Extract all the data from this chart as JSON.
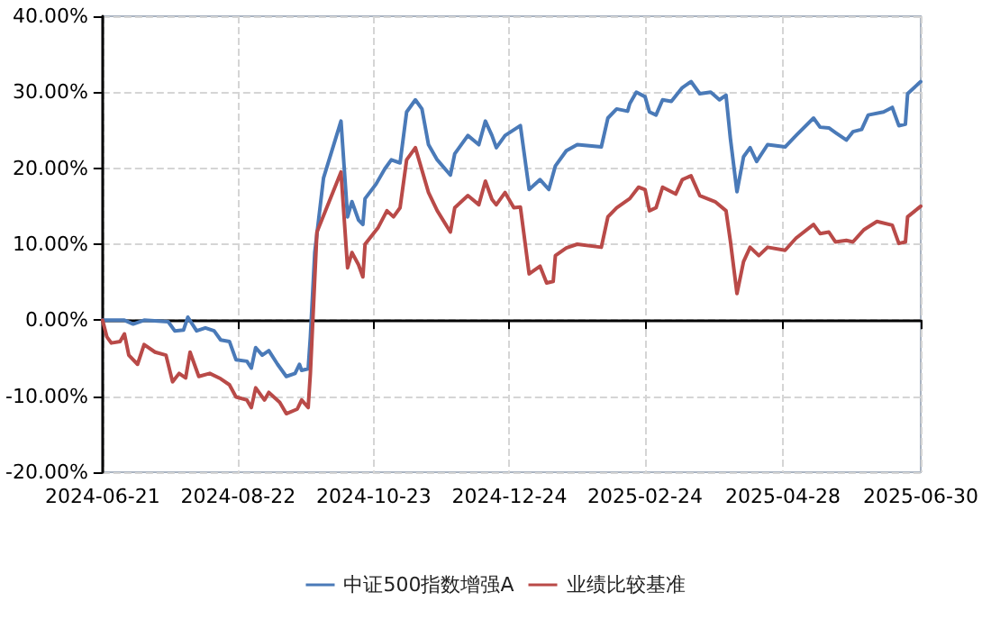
{
  "chart_data": {
    "type": "line",
    "marker": "none",
    "line_style": "solid",
    "grid": true,
    "legend": "bottom",
    "xlim": [
      "2024-06-21",
      "2025-06-30"
    ],
    "xticks": [
      "2024-06-21",
      "2024-08-22",
      "2024-10-23",
      "2024-12-24",
      "2025-02-24",
      "2025-04-28",
      "2025-06-30"
    ],
    "ylim": [
      -20,
      40
    ],
    "yticks": [
      {
        "value": -20,
        "label": "-20.00%"
      },
      {
        "value": -10,
        "label": "-10.00%"
      },
      {
        "value": 0,
        "label": "0.00%"
      },
      {
        "value": 10,
        "label": "10.00%"
      },
      {
        "value": 20,
        "label": "20.00%"
      },
      {
        "value": 30,
        "label": "30.00%"
      },
      {
        "value": 40,
        "label": "40.00%"
      }
    ],
    "series": [
      {
        "name": "中证500指数增强A",
        "color": "#4a7ab8",
        "x": [
          "2024-06-21",
          "2024-07-01",
          "2024-07-05",
          "2024-07-10",
          "2024-07-21",
          "2024-07-24",
          "2024-07-28",
          "2024-07-30",
          "2024-08-03",
          "2024-08-07",
          "2024-08-11",
          "2024-08-14",
          "2024-08-18",
          "2024-08-21",
          "2024-08-26",
          "2024-08-28",
          "2024-08-30",
          "2024-09-02",
          "2024-09-05",
          "2024-09-09",
          "2024-09-13",
          "2024-09-17",
          "2024-09-19",
          "2024-09-20",
          "2024-09-23",
          "2024-09-24",
          "2024-09-26",
          "2024-09-30",
          "2024-10-08",
          "2024-10-11",
          "2024-10-13",
          "2024-10-16",
          "2024-10-18",
          "2024-10-19",
          "2024-10-24",
          "2024-10-28",
          "2024-10-31",
          "2024-11-04",
          "2024-11-07",
          "2024-11-11",
          "2024-11-14",
          "2024-11-17",
          "2024-11-21",
          "2024-11-27",
          "2024-11-29",
          "2024-12-05",
          "2024-12-10",
          "2024-12-13",
          "2024-12-16",
          "2024-12-18",
          "2024-12-22",
          "2024-12-29",
          "2025-01-02",
          "2025-01-07",
          "2025-01-11",
          "2025-01-14",
          "2025-01-19",
          "2025-01-24",
          "2025-02-04",
          "2025-02-07",
          "2025-02-11",
          "2025-02-16",
          "2025-02-17",
          "2025-02-20",
          "2025-02-24",
          "2025-02-26",
          "2025-03-01",
          "2025-03-04",
          "2025-03-08",
          "2025-03-13",
          "2025-03-17",
          "2025-03-21",
          "2025-03-26",
          "2025-03-30",
          "2025-04-02",
          "2025-04-04",
          "2025-04-07",
          "2025-04-10",
          "2025-04-13",
          "2025-04-16",
          "2025-04-21",
          "2025-04-29",
          "2025-05-04",
          "2025-05-12",
          "2025-05-15",
          "2025-05-19",
          "2025-05-22",
          "2025-05-27",
          "2025-05-30",
          "2025-06-03",
          "2025-06-06",
          "2025-06-13",
          "2025-06-17",
          "2025-06-20",
          "2025-06-23",
          "2025-06-24",
          "2025-06-30"
        ],
        "values": [
          0,
          0,
          -0.5,
          0,
          -0.2,
          -1.4,
          -1.3,
          0.4,
          -1.4,
          -1.0,
          -1.4,
          -2.6,
          -2.8,
          -5.2,
          -5.4,
          -6.3,
          -3.6,
          -4.6,
          -4.0,
          -5.8,
          -7.4,
          -7.0,
          -5.8,
          -6.6,
          -6.4,
          -2.2,
          8.9,
          18.7,
          26.2,
          13.6,
          15.6,
          13.2,
          12.6,
          16.0,
          17.9,
          19.9,
          21.1,
          20.7,
          27.4,
          29.0,
          27.8,
          23.1,
          21.1,
          19.1,
          21.9,
          24.3,
          23.1,
          26.2,
          24.3,
          22.7,
          24.3,
          25.6,
          17.2,
          18.5,
          17.2,
          20.3,
          22.3,
          23.1,
          22.8,
          26.6,
          27.8,
          27.5,
          28.5,
          30.0,
          29.4,
          27.4,
          27.0,
          29.0,
          28.8,
          30.6,
          31.4,
          29.8,
          30.0,
          29.0,
          29.6,
          23.9,
          16.9,
          21.5,
          22.7,
          20.9,
          23.1,
          22.8,
          24.3,
          26.6,
          25.4,
          25.3,
          24.7,
          23.7,
          24.8,
          25.1,
          27.0,
          27.4,
          28.0,
          25.6,
          25.8,
          29.8,
          31.4
        ]
      },
      {
        "name": "业绩比较基准",
        "color": "#b94a48",
        "x": [
          "2024-06-21",
          "2024-06-23",
          "2024-06-25",
          "2024-06-29",
          "2024-07-01",
          "2024-07-03",
          "2024-07-07",
          "2024-07-10",
          "2024-07-15",
          "2024-07-20",
          "2024-07-23",
          "2024-07-26",
          "2024-07-29",
          "2024-07-31",
          "2024-08-04",
          "2024-08-09",
          "2024-08-14",
          "2024-08-18",
          "2024-08-21",
          "2024-08-26",
          "2024-08-28",
          "2024-08-30",
          "2024-09-03",
          "2024-09-05",
          "2024-09-10",
          "2024-09-13",
          "2024-09-18",
          "2024-09-20",
          "2024-09-23",
          "2024-09-24",
          "2024-09-27",
          "2024-10-08",
          "2024-10-11",
          "2024-10-13",
          "2024-10-16",
          "2024-10-18",
          "2024-10-19",
          "2024-10-25",
          "2024-10-29",
          "2024-11-01",
          "2024-11-04",
          "2024-11-07",
          "2024-11-11",
          "2024-11-17",
          "2024-11-21",
          "2024-11-27",
          "2024-11-29",
          "2024-12-05",
          "2024-12-10",
          "2024-12-13",
          "2024-12-16",
          "2024-12-18",
          "2024-12-22",
          "2024-12-26",
          "2024-12-29",
          "2025-01-02",
          "2025-01-07",
          "2025-01-10",
          "2025-01-13",
          "2025-01-14",
          "2025-01-19",
          "2025-01-24",
          "2025-02-04",
          "2025-02-07",
          "2025-02-11",
          "2025-02-17",
          "2025-02-21",
          "2025-02-24",
          "2025-02-26",
          "2025-03-01",
          "2025-03-04",
          "2025-03-10",
          "2025-03-13",
          "2025-03-17",
          "2025-03-21",
          "2025-03-28",
          "2025-04-02",
          "2025-04-04",
          "2025-04-07",
          "2025-04-10",
          "2025-04-13",
          "2025-04-17",
          "2025-04-21",
          "2025-04-29",
          "2025-05-04",
          "2025-05-12",
          "2025-05-15",
          "2025-05-19",
          "2025-05-22",
          "2025-05-27",
          "2025-05-30",
          "2025-06-04",
          "2025-06-10",
          "2025-06-17",
          "2025-06-20",
          "2025-06-23",
          "2025-06-24",
          "2025-06-30"
        ],
        "values": [
          0,
          -2.2,
          -3.0,
          -2.8,
          -1.8,
          -4.6,
          -5.8,
          -3.2,
          -4.2,
          -4.6,
          -8.1,
          -7.0,
          -7.6,
          -4.2,
          -7.4,
          -7.0,
          -7.7,
          -8.5,
          -10.1,
          -10.5,
          -11.5,
          -8.9,
          -10.5,
          -9.5,
          -10.8,
          -12.3,
          -11.7,
          -10.5,
          -11.5,
          -7.0,
          11.6,
          19.5,
          6.9,
          8.9,
          7.3,
          5.7,
          10.0,
          12.2,
          14.4,
          13.6,
          14.8,
          21.1,
          22.7,
          16.8,
          14.4,
          11.6,
          14.8,
          16.4,
          15.2,
          18.3,
          15.9,
          15.2,
          16.8,
          14.8,
          14.9,
          6.1,
          7.1,
          4.9,
          5.1,
          8.5,
          9.5,
          10.0,
          9.6,
          13.6,
          14.8,
          16.0,
          17.5,
          17.2,
          14.4,
          14.8,
          17.5,
          16.6,
          18.5,
          19.0,
          16.4,
          15.6,
          14.4,
          10.4,
          3.5,
          7.7,
          9.6,
          8.5,
          9.6,
          9.2,
          10.8,
          12.6,
          11.4,
          11.6,
          10.3,
          10.5,
          10.3,
          11.9,
          13.0,
          12.5,
          10.1,
          10.3,
          13.6,
          15.0
        ]
      }
    ]
  }
}
